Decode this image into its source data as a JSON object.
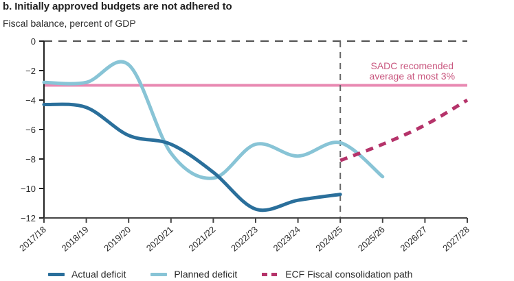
{
  "chart_data": {
    "type": "line",
    "title": "b. Initially approved budgets are not adhered to",
    "subtitle": "Fiscal balance, percent of GDP",
    "xlabel": "",
    "ylabel": "Fiscal balance, percent of GDP",
    "categories": [
      "2017/18",
      "2018/19",
      "2019/20",
      "2020/21",
      "2021/22",
      "2022/23",
      "2023/24",
      "2024/25",
      "2025/26",
      "2026/27",
      "2027/28"
    ],
    "ylim": [
      -12,
      0
    ],
    "yticks": [
      0,
      -2,
      -4,
      -6,
      -8,
      -10,
      -12
    ],
    "ytick_labels": [
      "0",
      "−2",
      "−4",
      "−6",
      "−8",
      "−10",
      "−12"
    ],
    "grid": false,
    "legend_position": "bottom",
    "series": [
      {
        "name": "Actual deficit",
        "color": "#2a6f9b",
        "style": "solid",
        "values": [
          -4.3,
          -4.5,
          -6.4,
          -7.0,
          -8.9,
          -11.4,
          -10.8,
          -10.4,
          null,
          null,
          null
        ]
      },
      {
        "name": "Planned deficit",
        "color": "#88c4d6",
        "style": "solid",
        "values": [
          -2.8,
          -2.8,
          -1.6,
          -7.6,
          -9.3,
          -7.0,
          -7.8,
          -6.9,
          -9.2,
          null,
          null
        ]
      },
      {
        "name": "ECF Fiscal consolidation path",
        "color": "#b5336a",
        "style": "dashed",
        "values": [
          null,
          null,
          null,
          null,
          null,
          null,
          null,
          -8.1,
          -7.0,
          -5.7,
          -4.0
        ]
      }
    ],
    "reference_lines": [
      {
        "name": "SADC recommended ceiling",
        "axis": "y",
        "value": -3,
        "color": "#e889b2",
        "style": "solid"
      },
      {
        "name": "Zero line",
        "axis": "y",
        "value": 0,
        "color": "#555555",
        "style": "dashed"
      },
      {
        "name": "Projection start",
        "axis": "x",
        "value": "2024/25",
        "color": "#666666",
        "style": "dashed"
      }
    ],
    "annotations": [
      {
        "text_line1": "SADC recomended",
        "text_line2": "average at most 3%",
        "color": "#c9577f",
        "anchor_x": "2025/26",
        "anchor_y": -2.0
      }
    ]
  },
  "legend": {
    "items": [
      {
        "label": "Actual deficit",
        "color": "#2a6f9b",
        "style": "solid"
      },
      {
        "label": "Planned deficit",
        "color": "#88c4d6",
        "style": "solid"
      },
      {
        "label": "ECF Fiscal consolidation path",
        "color": "#b5336a",
        "style": "dashed"
      }
    ]
  }
}
